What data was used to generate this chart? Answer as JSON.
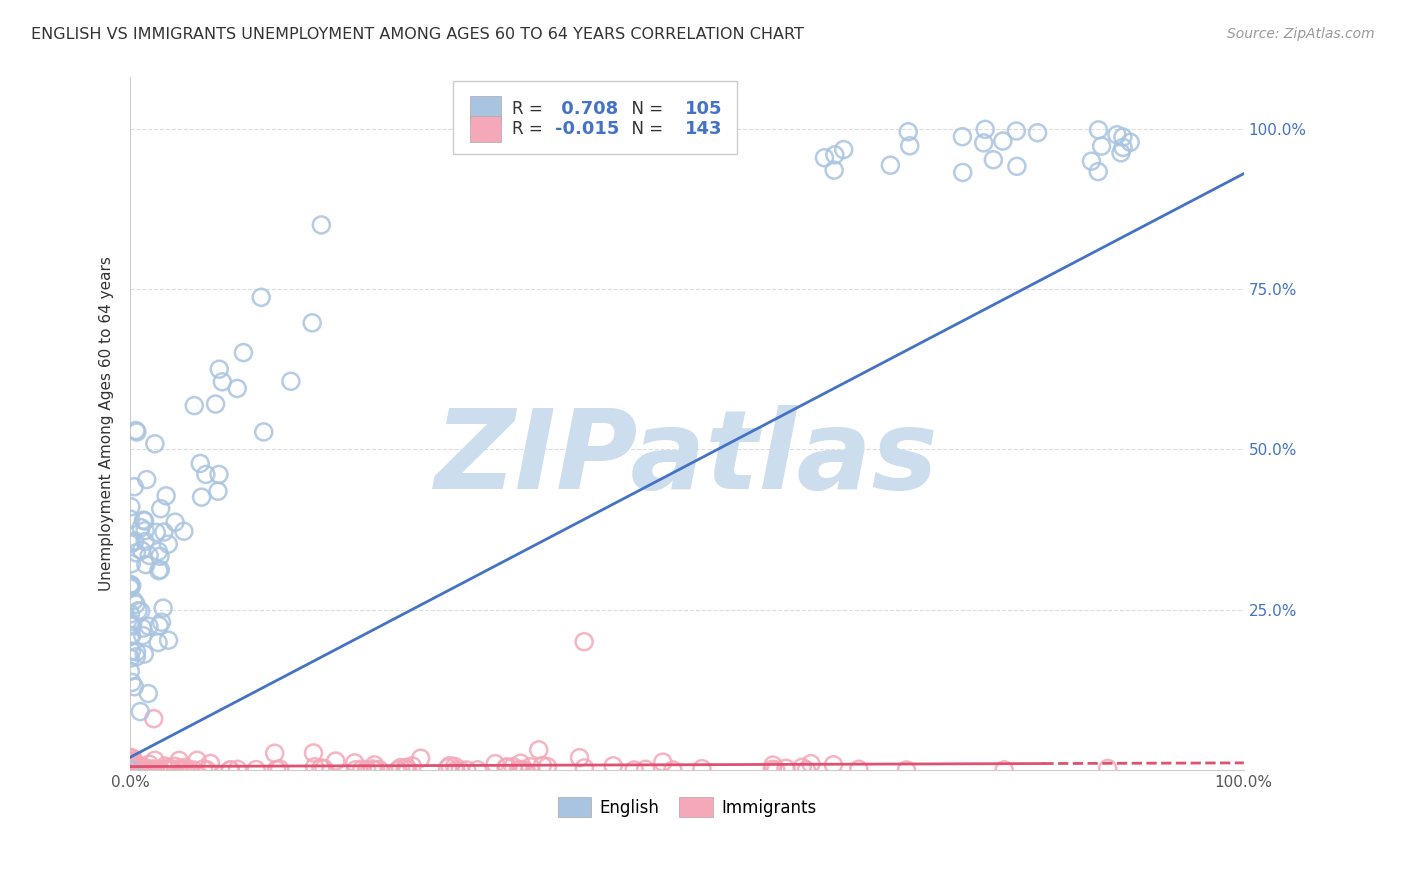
{
  "title": "ENGLISH VS IMMIGRANTS UNEMPLOYMENT AMONG AGES 60 TO 64 YEARS CORRELATION CHART",
  "source": "Source: ZipAtlas.com",
  "ylabel": "Unemployment Among Ages 60 to 64 years",
  "english_color": "#a8c4e0",
  "english_edge_color": "#7aaad0",
  "immigrants_color": "#f4a8b8",
  "immigrants_edge_color": "#e07090",
  "english_line_color": "#4472c4",
  "immigrants_line_color": "#e05070",
  "english_R": 0.708,
  "english_N": 105,
  "immigrants_R": -0.015,
  "immigrants_N": 143,
  "watermark": "ZIPatlas",
  "watermark_color": "#ccdded",
  "background_color": "#ffffff",
  "grid_color": "#dddddd",
  "seed": 42,
  "right_yaxis_color": "#4472c4",
  "tick_label_color": "#555555"
}
